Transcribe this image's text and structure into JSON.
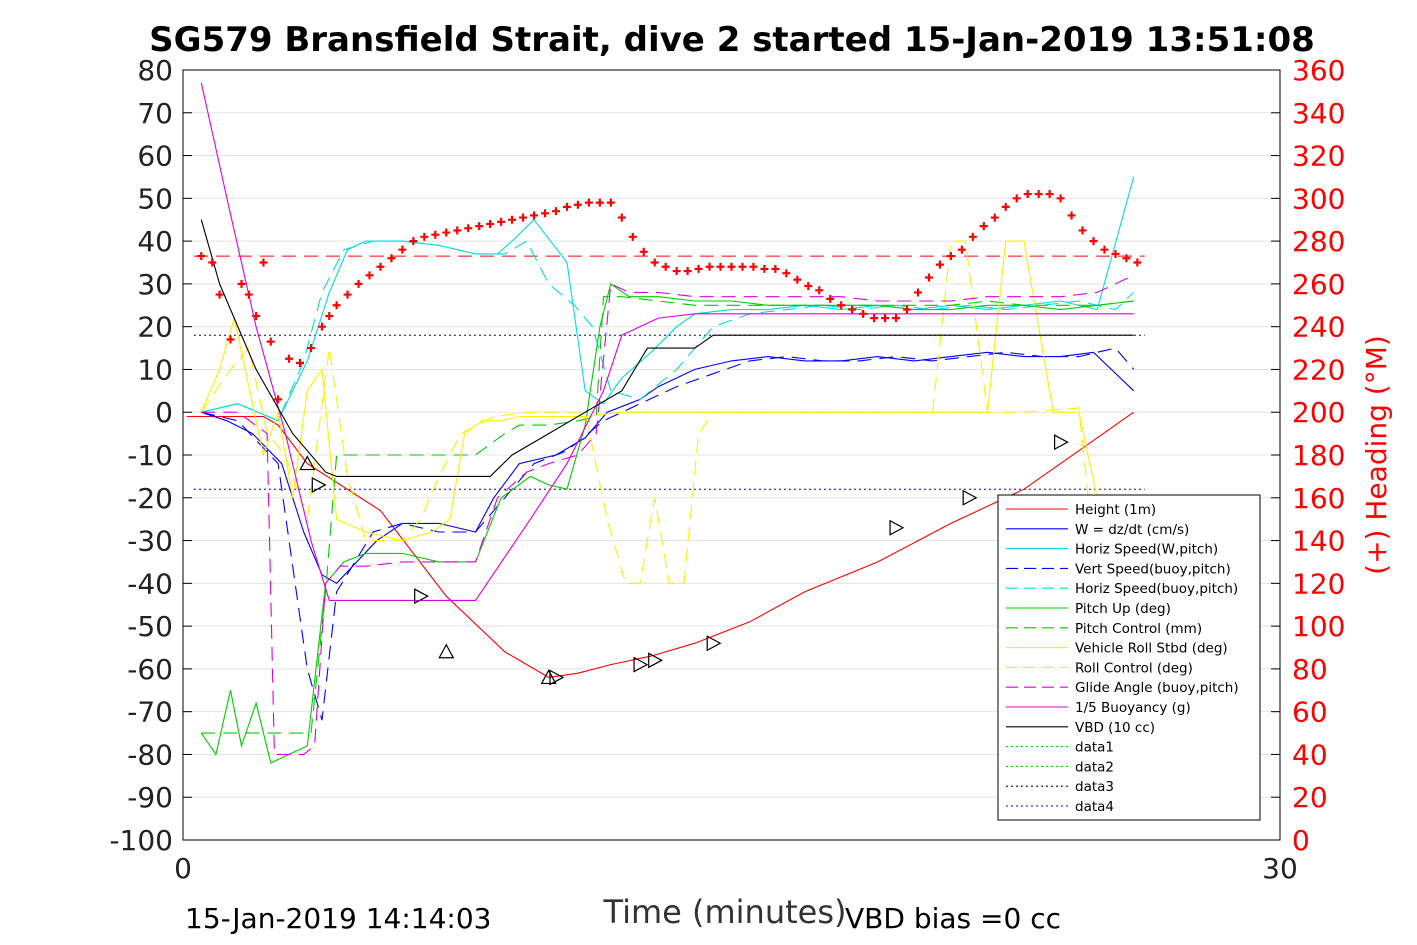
{
  "chart_data": {
    "type": "line",
    "title": "SG579 Bransfield Strait, dive 2 started 15-Jan-2019 13:51:08",
    "xlabel": "Time (minutes)",
    "ylabel_right": "(+) Heading (°M)",
    "xlim": [
      0,
      30
    ],
    "ylim": [
      -100,
      80
    ],
    "ylim_right": [
      0,
      360
    ],
    "x_ticks": [
      "0",
      "30"
    ],
    "y_ticks": [
      "80",
      "70",
      "60",
      "50",
      "40",
      "30",
      "20",
      "10",
      "0",
      "-10",
      "-20",
      "-30",
      "-40",
      "-50",
      "-60",
      "-70",
      "-80",
      "-90",
      "-100"
    ],
    "y_ticks_right": [
      "360",
      "340",
      "320",
      "300",
      "280",
      "260",
      "240",
      "220",
      "200",
      "180",
      "160",
      "140",
      "120",
      "100",
      "80",
      "60",
      "40",
      "20",
      "0"
    ],
    "footer_left": "15-Jan-2019 14:14:03",
    "footer_right": "VBD bias =0 cc",
    "legend_position": "lower-right",
    "reference_lines": {
      "heading_mean": 273,
      "dotted_upper": 18,
      "dotted_lower": -18
    },
    "series": [
      {
        "name": "Height (1m)",
        "color": "#ff0000",
        "style": "solid",
        "x": [
          0.1,
          2.2,
          2.6,
          3.4,
          5.4,
          7.2,
          8.8,
          10.0,
          10.8,
          11.7,
          12.8,
          14.0,
          15.5,
          17.0,
          19.0,
          21.0,
          23.0,
          24.5,
          26.0
        ],
        "values": [
          -1,
          -1,
          -3,
          -12,
          -23,
          -43,
          -56,
          -62,
          -61,
          -59,
          -57,
          -54,
          -49,
          -42,
          -35,
          -26,
          -18,
          -9,
          0
        ]
      },
      {
        "name": "W = dz/dt (cm/s)",
        "color": "#0000ff",
        "style": "solid",
        "x": [
          0.5,
          1.2,
          1.9,
          2.7,
          3.3,
          3.8,
          4.2,
          5.3,
          6.0,
          7.0,
          8.0,
          8.5,
          9.2,
          10.2,
          11.0,
          11.6,
          12.5,
          13.0,
          14.0,
          15.0,
          16.0,
          17.0,
          18.0,
          19.0,
          20.0,
          21.0,
          22.0,
          23.0,
          24.0,
          24.9,
          26.0
        ],
        "values": [
          0,
          -2,
          -5,
          -12,
          -28,
          -38,
          -40,
          -30,
          -26,
          -26,
          -28,
          -20,
          -12,
          -10,
          -6,
          0,
          3,
          6,
          10,
          12,
          13,
          12,
          12,
          13,
          12,
          13,
          14,
          13,
          13,
          14,
          5
        ]
      },
      {
        "name": "Horiz Speed(W,pitch)",
        "color": "#00dddd",
        "style": "solid",
        "x": [
          0.5,
          1.5,
          2.6,
          3.4,
          4.0,
          4.5,
          5.0,
          6.0,
          7.0,
          8.0,
          8.6,
          9.0,
          9.6,
          10.5,
          11.0,
          11.5,
          12.0,
          12.8,
          13.5,
          14.0,
          15.0,
          16.0,
          17.0,
          18.0,
          19.0,
          20.0,
          21.0,
          22.0,
          23.0,
          24.0,
          25.0,
          26.0
        ],
        "values": [
          0,
          2,
          -2,
          12,
          28,
          38,
          40,
          40,
          39,
          37,
          37,
          40,
          45,
          35,
          5,
          2,
          8,
          14,
          20,
          23,
          24,
          24,
          25,
          24,
          25,
          24,
          25,
          24,
          25,
          26,
          24,
          55
        ]
      },
      {
        "name": "Vert Speed(buoy,pitch)",
        "color": "#0000ff",
        "style": "dashed",
        "x": [
          0.5,
          1.5,
          2.6,
          3.4,
          3.8,
          4.2,
          5.2,
          6.0,
          7.0,
          8.0,
          8.8,
          9.6,
          10.5,
          11.5,
          12.5,
          13.5,
          14.5,
          15.5,
          16.5,
          17.5,
          18.5,
          19.5,
          20.5,
          21.5,
          22.5,
          23.5,
          24.5,
          25.5,
          26.0
        ],
        "values": [
          0,
          -2,
          -12,
          -60,
          -72,
          -42,
          -28,
          -26,
          -28,
          -28,
          -20,
          -12,
          -9,
          -2,
          2,
          6,
          9,
          12,
          13,
          12,
          12,
          13,
          12,
          13,
          14,
          13,
          13,
          15,
          10
        ]
      },
      {
        "name": "Horiz Speed(buoy,pitch)",
        "color": "#00dddd",
        "style": "dashed",
        "x": [
          0.5,
          1.5,
          2.6,
          3.3,
          3.8,
          4.4,
          5.2,
          6.0,
          7.0,
          8.0,
          8.8,
          9.4,
          10.0,
          10.7,
          11.2,
          11.7,
          12.5,
          13.5,
          14.5,
          15.5,
          16.5,
          17.5,
          18.5,
          19.5,
          20.5,
          21.5,
          22.5,
          23.5,
          24.5,
          25.5,
          26.0
        ],
        "values": [
          0,
          2,
          -2,
          12,
          28,
          38,
          40,
          40,
          39,
          37,
          37,
          40,
          30,
          25,
          20,
          5,
          3,
          10,
          20,
          23,
          24,
          25,
          24,
          25,
          24,
          25,
          24,
          25,
          26,
          24,
          28
        ]
      },
      {
        "name": "Pitch Up (deg)",
        "color": "#00cc00",
        "style": "solid",
        "x": [
          0.5,
          0.9,
          1.3,
          1.6,
          2.0,
          2.4,
          2.9,
          3.4,
          3.9,
          4.4,
          5.0,
          6.0,
          7.0,
          8.0,
          8.7,
          9.5,
          10.0,
          10.5,
          11.0,
          11.4,
          11.7,
          12.2,
          13.0,
          14.0,
          15.0,
          16.0,
          17.0,
          18.0,
          19.0,
          20.0,
          21.0,
          22.0,
          23.0,
          24.0,
          25.0,
          26.0
        ],
        "values": [
          -75,
          -80,
          -65,
          -78,
          -68,
          -82,
          -80,
          -78,
          -40,
          -35,
          -33,
          -33,
          -35,
          -35,
          -20,
          -15,
          -17,
          -18,
          -3,
          20,
          30,
          27,
          27,
          26,
          26,
          25,
          25,
          25,
          25,
          24,
          24,
          25,
          25,
          24,
          25,
          26
        ]
      },
      {
        "name": "Pitch Control (mm)",
        "color": "#00cc00",
        "style": "dashed",
        "x": [
          0.5,
          2.5,
          3.5,
          3.9,
          4.2,
          5.0,
          6.0,
          7.0,
          8.0,
          8.8,
          9.2,
          10.0,
          10.8,
          11.3,
          11.5,
          12.0,
          13.0,
          14.0,
          15.0,
          16.0,
          17.0,
          18.0,
          19.0,
          20.0,
          21.0,
          22.0,
          23.0,
          24.0,
          25.0,
          26.0
        ],
        "values": [
          -75,
          -75,
          -75,
          -42,
          -10,
          -10,
          -10,
          -10,
          -10,
          -5,
          -3,
          -3,
          -2,
          -1,
          27,
          27,
          26,
          25,
          25,
          25,
          25,
          25,
          25,
          25,
          25,
          26,
          25,
          25,
          25,
          26
        ]
      },
      {
        "name": "Vehicle Roll Stbd (deg)",
        "color": "#ffee00",
        "style": "solid",
        "x": [
          0.5,
          1.0,
          1.4,
          1.7,
          2.2,
          2.6,
          3.0,
          3.4,
          3.8,
          4.2,
          5.0,
          6.0,
          6.8,
          7.3,
          7.7,
          8.2,
          8.7,
          9.2,
          10.0,
          11.0,
          12.0,
          13.0,
          14.0,
          15.0,
          16.0,
          17.0,
          18.0,
          19.0,
          20.0,
          20.5,
          21.0,
          21.5,
          22.0,
          22.5,
          23.0,
          23.8,
          24.5,
          25.0,
          25.5,
          26.0
        ],
        "values": [
          0,
          10,
          22,
          10,
          -10,
          0,
          -20,
          5,
          10,
          -25,
          -28,
          -30,
          -28,
          -25,
          -5,
          -2,
          -2,
          -1,
          -1,
          -1,
          0,
          0,
          0,
          0,
          0,
          0,
          0,
          0,
          0,
          0,
          0,
          0,
          0,
          40,
          40,
          0,
          0,
          -20,
          -25,
          -22
        ]
      },
      {
        "name": "Roll Control (deg)",
        "color": "#ffee00",
        "style": "dashed",
        "x": [
          0.5,
          1.3,
          1.8,
          2.3,
          2.8,
          3.4,
          4.0,
          4.5,
          5.0,
          6.0,
          6.5,
          7.0,
          7.6,
          8.5,
          9.5,
          10.5,
          11.0,
          11.6,
          12.1,
          12.5,
          12.9,
          13.3,
          13.7,
          14.1,
          14.5,
          15.0,
          16.0,
          17.0,
          18.0,
          19.0,
          20.0,
          20.5,
          21.0,
          21.4,
          22.0,
          23.0,
          24.5,
          25.0,
          25.5,
          26.0
        ],
        "values": [
          0,
          10,
          15,
          -5,
          -10,
          -25,
          15,
          -15,
          -30,
          -30,
          -25,
          -15,
          -5,
          -1,
          0,
          0,
          0,
          -25,
          -40,
          -40,
          -20,
          -40,
          -40,
          -5,
          0,
          0,
          0,
          0,
          0,
          0,
          0,
          0,
          40,
          40,
          0,
          0,
          1,
          -40,
          -40,
          -40
        ]
      },
      {
        "name": "Glide Angle (buoy,pitch)",
        "color": "#dd00dd",
        "style": "dashed",
        "x": [
          0.5,
          1.5,
          2.3,
          2.5,
          2.8,
          3.3,
          3.6,
          3.9,
          4.3,
          5.0,
          6.0,
          7.0,
          8.0,
          8.6,
          9.4,
          10.0,
          10.8,
          11.3,
          11.7,
          12.2,
          13.0,
          14.0,
          15.0,
          16.0,
          17.0,
          18.0,
          19.0,
          20.0,
          21.0,
          22.0,
          23.0,
          24.0,
          25.0,
          26.0
        ],
        "values": [
          0,
          0,
          -5,
          -80,
          -80,
          -80,
          -78,
          -40,
          -36,
          -36,
          -35,
          -35,
          -35,
          -20,
          -14,
          -12,
          -10,
          -5,
          30,
          28,
          28,
          27,
          27,
          27,
          27,
          27,
          26,
          26,
          26,
          27,
          27,
          27,
          28,
          32
        ]
      },
      {
        "name": "1/5 Buoyancy (g)",
        "color": "#dd00dd",
        "style": "solid",
        "x": [
          0.5,
          1.2,
          2.0,
          2.8,
          3.5,
          4.0,
          4.3,
          5.0,
          6.0,
          7.0,
          8.0,
          9.5,
          10.5,
          11.5,
          12.0,
          13.0,
          14.0,
          15.0,
          16.0,
          17.0,
          18.0,
          19.0,
          20.0,
          21.0,
          22.0,
          23.0,
          24.0,
          25.0,
          26.0
        ],
        "values": [
          77,
          50,
          20,
          -5,
          -30,
          -44,
          -44,
          -44,
          -44,
          -44,
          -44,
          -25,
          -12,
          5,
          18,
          22,
          23,
          23,
          23,
          23,
          23,
          23,
          23,
          23,
          23,
          23,
          23,
          23,
          23
        ]
      },
      {
        "name": "VBD (10 cc)",
        "color": "#000000",
        "style": "solid",
        "x": [
          0.5,
          1.0,
          2.0,
          3.0,
          3.9,
          4.2,
          5.0,
          6.0,
          7.0,
          8.4,
          9.0,
          10.0,
          11.0,
          12.0,
          12.7,
          13.5,
          14.0,
          14.5,
          15.0,
          16.0,
          17.0,
          18.0,
          19.0,
          20.0,
          21.0,
          22.0,
          23.0,
          24.0,
          25.0,
          26.0
        ],
        "values": [
          45,
          30,
          10,
          -5,
          -14,
          -15,
          -15,
          -15,
          -15,
          -15,
          -10,
          -5,
          0,
          5,
          15,
          15,
          15,
          18,
          18,
          18,
          18,
          18,
          18,
          18,
          18,
          18,
          18,
          18,
          18,
          18
        ]
      },
      {
        "name": "data1",
        "color": "#00cc00",
        "style": "dotted",
        "x": [],
        "values": []
      },
      {
        "name": "data2",
        "color": "#00cc00",
        "style": "dotted",
        "x": [],
        "values": []
      },
      {
        "name": "data3",
        "color": "#000080",
        "style": "dotted",
        "x": [],
        "values": []
      },
      {
        "name": "data4",
        "color": "#0000ff",
        "style": "dotted",
        "x": [],
        "values": []
      }
    ],
    "heading_points": {
      "axis": "right",
      "color": "#ff0000",
      "marker": "+",
      "x": [
        0.5,
        0.8,
        1.0,
        1.3,
        1.6,
        1.8,
        2.0,
        2.2,
        2.4,
        2.6,
        2.9,
        3.2,
        3.5,
        3.8,
        4.0,
        4.2,
        4.5,
        4.8,
        5.1,
        5.4,
        5.7,
        6.0,
        6.3,
        6.6,
        6.9,
        7.2,
        7.5,
        7.8,
        8.1,
        8.4,
        8.7,
        9.0,
        9.3,
        9.6,
        9.9,
        10.2,
        10.5,
        10.8,
        11.1,
        11.4,
        11.7,
        12.0,
        12.3,
        12.6,
        12.9,
        13.2,
        13.5,
        13.8,
        14.1,
        14.4,
        14.7,
        15.0,
        15.3,
        15.6,
        15.9,
        16.2,
        16.5,
        16.8,
        17.1,
        17.4,
        17.7,
        18.0,
        18.3,
        18.6,
        18.9,
        19.2,
        19.5,
        19.8,
        20.1,
        20.4,
        20.7,
        21.0,
        21.3,
        21.6,
        21.9,
        22.2,
        22.5,
        22.8,
        23.1,
        23.4,
        23.7,
        24.0,
        24.3,
        24.6,
        24.9,
        25.2,
        25.5,
        25.8,
        26.1
      ],
      "values": [
        273,
        270,
        255,
        234,
        260,
        255,
        245,
        270,
        233,
        206,
        225,
        223,
        230,
        240,
        245,
        250,
        255,
        260,
        264,
        268,
        272,
        276,
        280,
        282,
        283,
        284,
        285,
        286,
        287,
        288,
        289,
        290,
        291,
        292,
        293,
        294,
        296,
        297,
        298,
        298,
        298,
        291,
        282,
        275,
        270,
        268,
        266,
        266,
        267,
        268,
        268,
        268,
        268,
        268,
        267,
        267,
        265,
        262,
        259,
        257,
        253,
        250,
        248,
        246,
        244,
        244,
        244,
        248,
        256,
        263,
        269,
        273,
        276,
        282,
        287,
        291,
        296,
        300,
        302,
        302,
        302,
        300,
        292,
        285,
        280,
        276,
        274,
        272,
        270
      ],
      "mean_heading": 273
    },
    "markers": {
      "color": "#000000",
      "up_triangles": [
        {
          "x": 3.4,
          "y": -12
        },
        {
          "x": 7.2,
          "y": -56
        },
        {
          "x": 10.0,
          "y": -62
        }
      ],
      "right_triangles": [
        {
          "x": 3.7,
          "y": -17
        },
        {
          "x": 6.5,
          "y": -43
        },
        {
          "x": 10.2,
          "y": -62
        },
        {
          "x": 12.5,
          "y": -59
        },
        {
          "x": 12.9,
          "y": -58
        },
        {
          "x": 14.5,
          "y": -54
        },
        {
          "x": 19.5,
          "y": -27
        },
        {
          "x": 21.5,
          "y": -20
        },
        {
          "x": 24.0,
          "y": -7
        }
      ]
    }
  }
}
